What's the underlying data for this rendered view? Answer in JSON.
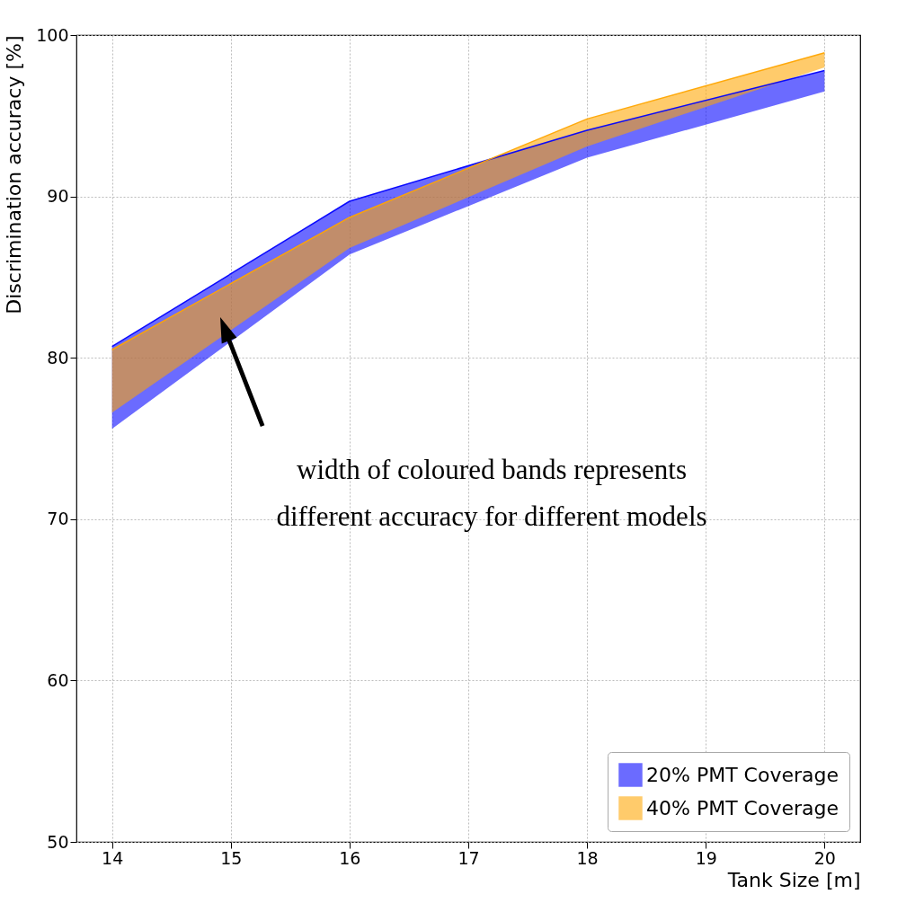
{
  "chart_data": {
    "type": "line",
    "xlabel": "Tank Size [m]",
    "ylabel": "Discrimination accuracy [%]",
    "x": [
      14,
      16,
      18,
      20
    ],
    "series": [
      {
        "name": "20% PMT Coverage",
        "color": "#0000ff",
        "lower": [
          75.6,
          86.4,
          92.4,
          96.5
        ],
        "upper": [
          80.7,
          89.7,
          94.1,
          97.8
        ],
        "values": [
          80.7,
          89.7,
          94.1,
          97.8
        ]
      },
      {
        "name": "40% PMT Coverage",
        "color": "#ffa500",
        "lower": [
          76.6,
          86.8,
          93.1,
          98.0
        ],
        "upper": [
          80.5,
          88.7,
          94.8,
          98.9
        ],
        "values": [
          80.5,
          88.7,
          94.8,
          98.9
        ]
      }
    ],
    "xlim": [
      13.7,
      20.3
    ],
    "xticks": [
      14,
      15,
      16,
      17,
      18,
      19,
      20
    ],
    "ylim": [
      50,
      100
    ],
    "yticks": [
      50,
      60,
      70,
      80,
      90,
      100
    ],
    "grid": true,
    "legend": "bottom right",
    "annotations": [
      "width of coloured bands represents\ndifferent accuracy for different models"
    ]
  }
}
